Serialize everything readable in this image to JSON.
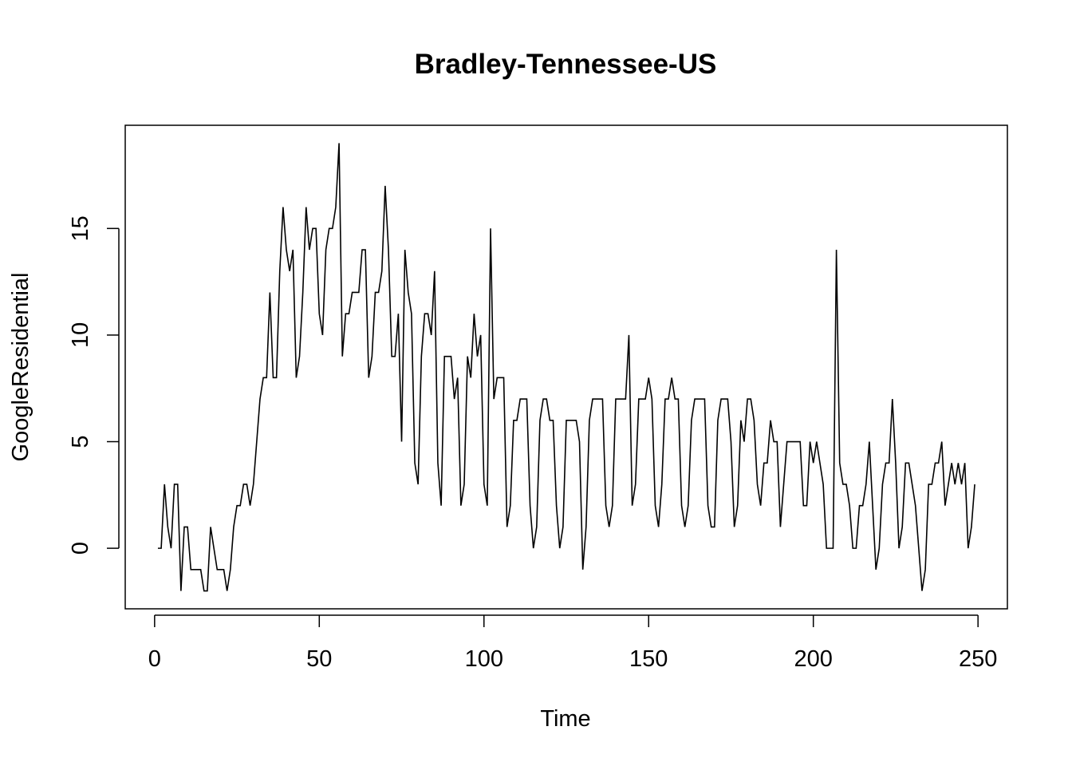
{
  "chart_data": {
    "type": "line",
    "title": "Bradley-Tennessee-US",
    "xlabel": "Time",
    "ylabel": "GoogleResidential",
    "xlim": [
      -8.92,
      258.92
    ],
    "ylim": [
      -2.84,
      19.84
    ],
    "xticks": [
      0,
      50,
      100,
      150,
      200,
      250
    ],
    "yticks": [
      0,
      5,
      10,
      15
    ],
    "x_start": 1,
    "series": [
      {
        "values": [
          0,
          0,
          3,
          1,
          0,
          3,
          3,
          -2,
          1,
          1,
          -1,
          -1,
          -1,
          -1,
          -2,
          -2,
          1,
          0,
          -1,
          -1,
          -1,
          -2,
          -1,
          1,
          2,
          2,
          3,
          3,
          2,
          3,
          5,
          7,
          8,
          8,
          12,
          8,
          8,
          13,
          16,
          14,
          13,
          14,
          8,
          9,
          12,
          16,
          14,
          15,
          15,
          11,
          10,
          14,
          15,
          15,
          16,
          19,
          9,
          11,
          11,
          12,
          12,
          12,
          14,
          14,
          8,
          9,
          12,
          12,
          13,
          17,
          14,
          9,
          9,
          11,
          5,
          14,
          12,
          11,
          4,
          3,
          9,
          11,
          11,
          10,
          13,
          4,
          2,
          9,
          9,
          9,
          7,
          8,
          2,
          3,
          9,
          8,
          11,
          9,
          10,
          3,
          2,
          15,
          7,
          8,
          8,
          8,
          1,
          2,
          6,
          6,
          7,
          7,
          7,
          2,
          0,
          1,
          6,
          7,
          7,
          6,
          6,
          2,
          0,
          1,
          6,
          6,
          6,
          6,
          5,
          -1,
          1,
          6,
          7,
          7,
          7,
          7,
          2,
          1,
          2,
          7,
          7,
          7,
          7,
          10,
          2,
          3,
          7,
          7,
          7,
          8,
          7,
          2,
          1,
          3,
          7,
          7,
          8,
          7,
          7,
          2,
          1,
          2,
          6,
          7,
          7,
          7,
          7,
          2,
          1,
          1,
          6,
          7,
          7,
          7,
          5,
          1,
          2,
          6,
          5,
          7,
          7,
          6,
          3,
          2,
          4,
          4,
          6,
          5,
          5,
          1,
          3,
          5,
          5,
          5,
          5,
          5,
          2,
          2,
          5,
          4,
          5,
          4,
          3,
          0,
          0,
          0,
          14,
          4,
          3,
          3,
          2,
          0,
          0,
          2,
          2,
          3,
          5,
          2,
          -1,
          0,
          3,
          4,
          4,
          7,
          4,
          0,
          1,
          4,
          4,
          3,
          2,
          0,
          -2,
          -1,
          3,
          3,
          4,
          4,
          5,
          2,
          3,
          4,
          3,
          4,
          3,
          4,
          0,
          1,
          3
        ]
      }
    ]
  }
}
